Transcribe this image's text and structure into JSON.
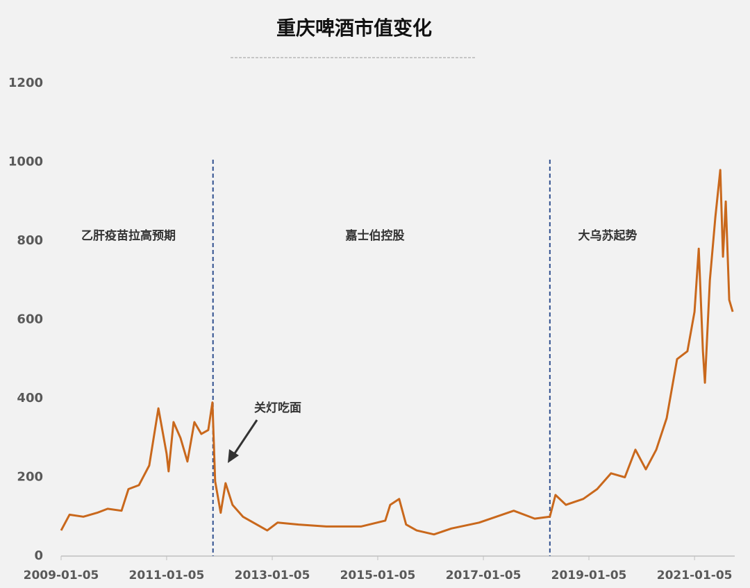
{
  "chart_data": {
    "type": "line",
    "title": "重庆啤酒市值变化",
    "x": [
      "2009-01-05",
      "2009-03-04",
      "2009-06-08",
      "2009-09-12",
      "2009-11-23",
      "2010-02-27",
      "2010-04-16",
      "2010-06-27",
      "2010-09-07",
      "2010-11-09",
      "2011-01-05",
      "2011-01-19",
      "2011-02-22",
      "2011-04-11",
      "2011-05-29",
      "2011-07-16",
      "2011-09-02",
      "2011-10-20",
      "2011-11-18",
      "2011-12-07",
      "2012-01-14",
      "2012-02-17",
      "2012-04-05",
      "2012-06-16",
      "2012-12-01",
      "2013-02-11",
      "2013-07-06",
      "2014-01-14",
      "2014-09-11",
      "2015-02-26",
      "2015-04-01",
      "2015-06-02",
      "2015-07-20",
      "2015-10-01",
      "2016-01-29",
      "2016-05-28",
      "2016-12-06",
      "2017-08-03",
      "2017-12-26",
      "2018-04-10",
      "2018-05-19",
      "2018-07-30",
      "2018-11-27",
      "2019-03-03",
      "2019-06-07",
      "2019-09-11",
      "2019-11-23",
      "2020-02-03",
      "2020-04-15",
      "2020-06-26",
      "2020-09-06",
      "2020-11-17",
      "2021-01-05",
      "2021-02-03",
      "2021-03-04",
      "2021-03-18",
      "2021-04-21",
      "2021-05-29",
      "2021-07-02",
      "2021-07-21",
      "2021-08-09",
      "2021-09-02",
      "2021-09-26"
    ],
    "series": [
      {
        "name": "市值",
        "color": "#c9681c",
        "values": [
          65,
          105,
          100,
          110,
          120,
          115,
          170,
          180,
          230,
          375,
          260,
          215,
          340,
          300,
          240,
          340,
          310,
          320,
          390,
          190,
          110,
          185,
          130,
          100,
          65,
          85,
          80,
          75,
          75,
          90,
          130,
          145,
          80,
          65,
          55,
          70,
          85,
          115,
          95,
          100,
          155,
          130,
          145,
          170,
          210,
          200,
          270,
          220,
          270,
          350,
          500,
          520,
          620,
          780,
          520,
          440,
          700,
          860,
          980,
          760,
          900,
          650,
          620
        ]
      }
    ],
    "xlim": [
      "2009-01-05",
      "2021-10-10"
    ],
    "xticks": [
      "2009-01-05",
      "2011-01-05",
      "2013-01-05",
      "2015-01-05",
      "2017-01-05",
      "2019-01-05",
      "2021-01-05"
    ],
    "ylim": [
      0,
      1200
    ],
    "yticks": [
      0,
      200,
      400,
      600,
      800,
      1000,
      1200
    ],
    "vlines": [
      "2011-11-22",
      "2018-04-10"
    ],
    "regions": [
      "乙肝疫苗拉高预期",
      "嘉士伯控股",
      "大乌苏起势"
    ],
    "annotation": "关灯吃面"
  }
}
